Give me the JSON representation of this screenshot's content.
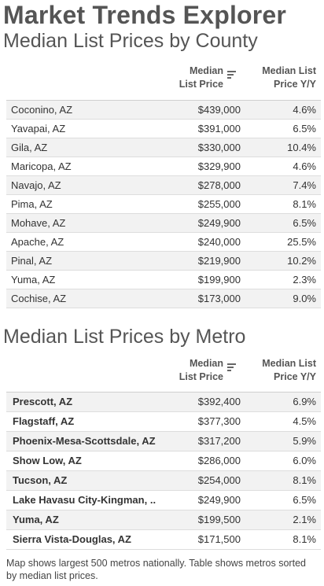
{
  "app_title": "Market Trends Explorer",
  "county": {
    "title": "Median List Prices by County",
    "headers": {
      "price_line1": "Median",
      "price_line2": "List Price",
      "yy_line1": "Median List",
      "yy_line2": "Price Y/Y"
    },
    "rows": [
      {
        "name": "Coconino, AZ",
        "price": "$439,000",
        "yy": "4.6%"
      },
      {
        "name": "Yavapai, AZ",
        "price": "$391,000",
        "yy": "6.5%"
      },
      {
        "name": "Gila, AZ",
        "price": "$330,000",
        "yy": "10.4%"
      },
      {
        "name": "Maricopa, AZ",
        "price": "$329,900",
        "yy": "4.6%"
      },
      {
        "name": "Navajo, AZ",
        "price": "$278,000",
        "yy": "7.4%"
      },
      {
        "name": "Pima, AZ",
        "price": "$255,000",
        "yy": "8.1%"
      },
      {
        "name": "Mohave, AZ",
        "price": "$249,900",
        "yy": "6.5%"
      },
      {
        "name": "Apache, AZ",
        "price": "$240,000",
        "yy": "25.5%"
      },
      {
        "name": "Pinal, AZ",
        "price": "$219,900",
        "yy": "10.2%"
      },
      {
        "name": "Yuma, AZ",
        "price": "$199,900",
        "yy": "2.3%"
      },
      {
        "name": "Cochise, AZ",
        "price": "$173,000",
        "yy": "9.0%"
      }
    ]
  },
  "metro": {
    "title": "Median List Prices by Metro",
    "headers": {
      "price_line1": "Median",
      "price_line2": "List Price",
      "yy_line1": "Median List",
      "yy_line2": "Price Y/Y"
    },
    "rows": [
      {
        "name": "Prescott, AZ",
        "price": "$392,400",
        "yy": "6.9%"
      },
      {
        "name": "Flagstaff, AZ",
        "price": "$377,300",
        "yy": "4.5%"
      },
      {
        "name": "Phoenix-Mesa-Scottsdale, AZ",
        "price": "$317,200",
        "yy": "5.9%"
      },
      {
        "name": "Show Low, AZ",
        "price": "$286,000",
        "yy": "6.0%"
      },
      {
        "name": "Tucson, AZ",
        "price": "$254,000",
        "yy": "8.1%"
      },
      {
        "name": "Lake Havasu City-Kingman, ..",
        "price": "$249,900",
        "yy": "6.5%"
      },
      {
        "name": "Yuma, AZ",
        "price": "$199,500",
        "yy": "2.1%"
      },
      {
        "name": "Sierra Vista-Douglas, AZ",
        "price": "$171,500",
        "yy": "8.1%"
      }
    ]
  },
  "footer": {
    "note": "Map shows largest 500 metros nationally. Table shows metros sorted by median list prices."
  },
  "icons": {
    "sort": "sort-descending-icon"
  },
  "colors": {
    "row_alt": "#f2f2f2",
    "title": "#555555",
    "text": "#333333"
  }
}
